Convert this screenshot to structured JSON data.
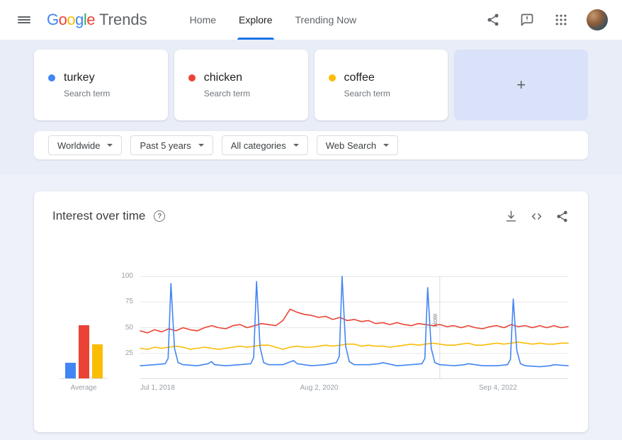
{
  "header": {
    "logo": {
      "name": "Google",
      "letter_colors": [
        "#4285F4",
        "#EA4335",
        "#FBBC05",
        "#4285F4",
        "#34A853",
        "#EA4335"
      ],
      "suffix": "Trends"
    },
    "nav": [
      {
        "label": "Home",
        "active": false
      },
      {
        "label": "Explore",
        "active": true
      },
      {
        "label": "Trending Now",
        "active": false
      }
    ]
  },
  "icons": {
    "menu": "hamburger",
    "share": "share-nodes",
    "feedback": "comment-bubble",
    "apps": "grid-3x3",
    "avatar": "user-photo",
    "help": "question-circle",
    "download": "download-arrow",
    "embed": "code-brackets"
  },
  "comparison": {
    "terms": [
      {
        "term": "turkey",
        "type": "Search term",
        "color": "#4285F4"
      },
      {
        "term": "chicken",
        "type": "Search term",
        "color": "#EA4335"
      },
      {
        "term": "coffee",
        "type": "Search term",
        "color": "#FBBC04"
      }
    ],
    "add_button_label": "+"
  },
  "filters": {
    "items": [
      "Worldwide",
      "Past 5 years",
      "All categories",
      "Web Search"
    ]
  },
  "widget": {
    "help_glyph": "?"
  },
  "chart_data": {
    "type": "line",
    "title": "Interest over time",
    "ylabel": "",
    "xlabel": "",
    "ylim": [
      0,
      100
    ],
    "x_max": 60,
    "grid": true,
    "y_ticks": [
      25,
      50,
      75,
      100
    ],
    "x_ticks": [
      {
        "label": "Jul 1, 2018",
        "position": 0
      },
      {
        "label": "Aug 2, 2020",
        "position": 0.418
      },
      {
        "label": "Sep 4, 2022",
        "position": 0.836
      }
    ],
    "annotation": {
      "label": "Note",
      "position": 0.7
    },
    "series": [
      {
        "name": "turkey",
        "color": "#4285F4",
        "points": [
          [
            0,
            13
          ],
          [
            2,
            14
          ],
          [
            3.5,
            15
          ],
          [
            3.9,
            20
          ],
          [
            4.3,
            93
          ],
          [
            4.8,
            30
          ],
          [
            5.3,
            16
          ],
          [
            6,
            14
          ],
          [
            8,
            13
          ],
          [
            9.5,
            15
          ],
          [
            10,
            17
          ],
          [
            10.4,
            14
          ],
          [
            12,
            13
          ],
          [
            14,
            14
          ],
          [
            15.5,
            15
          ],
          [
            15.9,
            21
          ],
          [
            16.3,
            95
          ],
          [
            16.8,
            31
          ],
          [
            17.3,
            16
          ],
          [
            18,
            14
          ],
          [
            20,
            14
          ],
          [
            21.5,
            18
          ],
          [
            22,
            15
          ],
          [
            24,
            13
          ],
          [
            26,
            14
          ],
          [
            27.5,
            16
          ],
          [
            27.9,
            22
          ],
          [
            28.3,
            100
          ],
          [
            28.8,
            32
          ],
          [
            29.3,
            17
          ],
          [
            30,
            14
          ],
          [
            32,
            14
          ],
          [
            33.5,
            15
          ],
          [
            34,
            16
          ],
          [
            36,
            13
          ],
          [
            38,
            14
          ],
          [
            39.5,
            15
          ],
          [
            39.9,
            20
          ],
          [
            40.3,
            89
          ],
          [
            40.8,
            30
          ],
          [
            41.3,
            16
          ],
          [
            42,
            14
          ],
          [
            44,
            13
          ],
          [
            45.5,
            14
          ],
          [
            46,
            15
          ],
          [
            48,
            13
          ],
          [
            50,
            13
          ],
          [
            51.5,
            14
          ],
          [
            51.9,
            19
          ],
          [
            52.3,
            78
          ],
          [
            52.8,
            28
          ],
          [
            53.3,
            15
          ],
          [
            54,
            13
          ],
          [
            56,
            12
          ],
          [
            57.5,
            13
          ],
          [
            58,
            14
          ],
          [
            60,
            13
          ]
        ]
      },
      {
        "name": "chicken",
        "color": "#EA4335",
        "values": [
          47,
          45,
          48,
          46,
          49,
          47,
          50,
          48,
          47,
          50,
          52,
          50,
          49,
          52,
          53,
          50,
          52,
          54,
          53,
          52,
          57,
          68,
          65,
          63,
          62,
          60,
          61,
          58,
          60,
          57,
          58,
          56,
          57,
          54,
          55,
          53,
          55,
          53,
          52,
          54,
          53,
          52,
          53,
          51,
          52,
          50,
          52,
          50,
          49,
          51,
          52,
          50,
          53,
          51,
          52,
          50,
          52,
          50,
          52,
          50,
          51
        ]
      },
      {
        "name": "coffee",
        "color": "#FBBC04",
        "values": [
          30,
          29,
          31,
          30,
          31,
          32,
          31,
          29,
          30,
          31,
          30,
          29,
          30,
          31,
          32,
          31,
          32,
          33,
          33,
          31,
          29,
          31,
          32,
          31,
          31,
          32,
          33,
          32,
          33,
          34,
          34,
          32,
          33,
          32,
          32,
          31,
          32,
          33,
          34,
          33,
          34,
          35,
          34,
          33,
          33,
          34,
          35,
          33,
          33,
          34,
          35,
          34,
          35,
          36,
          35,
          34,
          35,
          34,
          34,
          35,
          35
        ]
      }
    ],
    "averages": {
      "label": "Average",
      "bars": [
        {
          "name": "turkey",
          "value": 15,
          "color": "#4285F4"
        },
        {
          "name": "chicken",
          "value": 52,
          "color": "#EA4335"
        },
        {
          "name": "coffee",
          "value": 33,
          "color": "#FBBC04"
        }
      ]
    }
  }
}
